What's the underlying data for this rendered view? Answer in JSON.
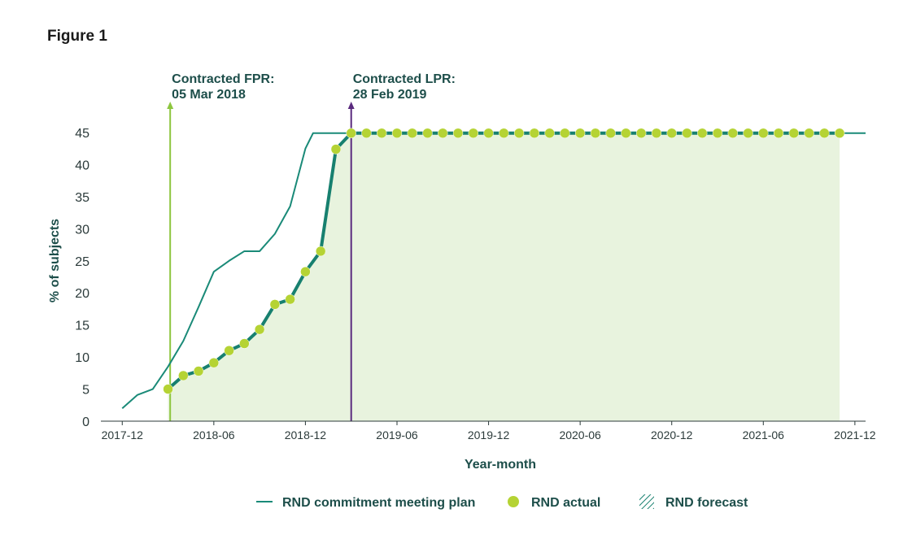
{
  "figure_title": "Figure 1",
  "colors": {
    "plan_line": "#1a8a78",
    "actual_line": "#17806f",
    "actual_marker": "#b5d334",
    "forecast_fill": "#e8f3de",
    "fpr_line": "#8dc63f",
    "lpr_line": "#5a2a7e",
    "text": "#1d4e4a"
  },
  "chart_data": {
    "type": "line",
    "xlabel": "Year-month",
    "ylabel": "% of subjects",
    "ylim": [
      0,
      45
    ],
    "yticks": [
      0,
      5,
      10,
      15,
      20,
      25,
      30,
      35,
      40,
      45
    ],
    "xlim": [
      -1.4,
      48.7
    ],
    "xticks": [
      {
        "x": 0,
        "label": "2017-12"
      },
      {
        "x": 6,
        "label": "2018-06"
      },
      {
        "x": 12,
        "label": "2018-12"
      },
      {
        "x": 18,
        "label": "2019-06"
      },
      {
        "x": 24,
        "label": "2019-12"
      },
      {
        "x": 30,
        "label": "2020-06"
      },
      {
        "x": 36,
        "label": "2020-12"
      },
      {
        "x": 42,
        "label": "2021-06"
      },
      {
        "x": 48,
        "label": "2021-12"
      }
    ],
    "annotations": [
      {
        "x": 3.14,
        "line1": "Contracted FPR:",
        "line2": "05 Mar 2018",
        "color_key": "fpr_line"
      },
      {
        "x": 15,
        "line1": "Contracted LPR:",
        "line2": "28 Feb 2019",
        "color_key": "lpr_line"
      }
    ],
    "series": [
      {
        "name": "RND commitment meeting plan",
        "kind": "line",
        "x": [
          0,
          1,
          2,
          3,
          4,
          5,
          6,
          7,
          8,
          9,
          10,
          11,
          12,
          12.5,
          13,
          14,
          20,
          30,
          40,
          48.7
        ],
        "values": [
          2,
          4.1,
          5,
          8.5,
          12.5,
          17.8,
          23.3,
          25,
          26.5,
          26.5,
          29.2,
          33.5,
          42.5,
          44.9,
          44.9,
          44.9,
          44.9,
          44.9,
          44.9,
          44.9
        ]
      },
      {
        "name": "RND actual",
        "kind": "line+markers",
        "x": [
          3,
          4,
          5,
          6,
          7,
          8,
          9,
          10,
          11,
          12,
          13,
          14,
          15,
          16,
          17,
          18,
          19,
          20,
          21,
          22,
          23,
          24,
          25,
          26,
          27,
          28,
          29,
          30,
          31,
          32,
          33,
          34,
          35,
          36,
          37,
          38,
          39,
          40,
          41,
          42,
          43,
          44,
          45,
          46,
          47
        ],
        "values": [
          5,
          7.1,
          7.8,
          9.1,
          11,
          12.1,
          14.3,
          18.2,
          19,
          23.3,
          26.5,
          42.4,
          44.9,
          44.9,
          44.9,
          44.9,
          44.9,
          44.9,
          44.9,
          44.9,
          44.9,
          44.9,
          44.9,
          44.9,
          44.9,
          44.9,
          44.9,
          44.9,
          44.9,
          44.9,
          44.9,
          44.9,
          44.9,
          44.9,
          44.9,
          44.9,
          44.9,
          44.9,
          44.9,
          44.9,
          44.9,
          44.9,
          44.9,
          44.9,
          44.9
        ]
      },
      {
        "name": "RND forecast",
        "kind": "area",
        "x_range": [
          3,
          47
        ]
      }
    ],
    "legend": {
      "position": "bottom-center",
      "items": [
        {
          "label": "RND commitment meeting plan",
          "symbol": "line"
        },
        {
          "label": "RND actual",
          "symbol": "dot"
        },
        {
          "label": "RND forecast",
          "symbol": "hatch"
        }
      ]
    }
  }
}
